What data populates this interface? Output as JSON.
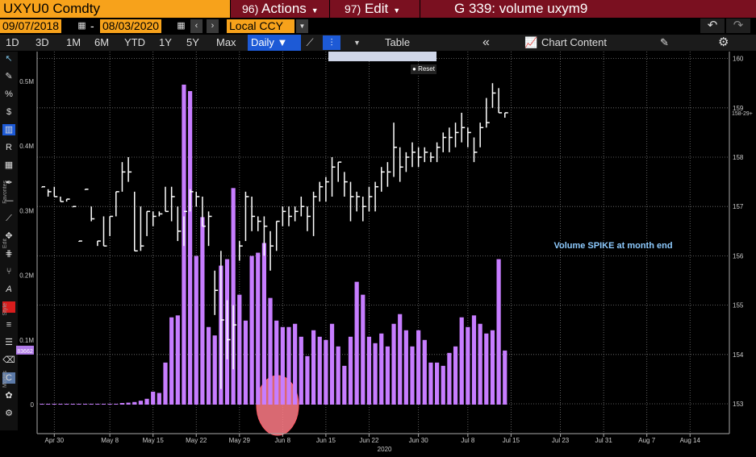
{
  "header": {
    "ticker": "UXYU0 Comdty",
    "actions_num": "96)",
    "actions_label": "Actions",
    "edit_num": "97)",
    "edit_label": "Edit",
    "title": "G 339: volume uxym9"
  },
  "toolbar": {
    "start_date": "09/07/2018",
    "dash": "-",
    "end_date": "08/03/2020",
    "currency": "Local CCY",
    "periods": [
      "1D",
      "3D",
      "1M",
      "6M",
      "YTD",
      "1Y",
      "5Y",
      "Max"
    ],
    "frequency": "Daily",
    "table_label": "Table",
    "chart_content_label": "Chart Content"
  },
  "overlay": {
    "reset_label": "Reset"
  },
  "side_labels": {
    "favorites": "Favorites",
    "edit": "Edit",
    "style": "Style",
    "modes": "Modes",
    "value_box": "83662"
  },
  "chart_data": {
    "type": "bar",
    "annotation": "Volume SPIKE at month end",
    "x_ticks": [
      "Apr 30",
      "May 8",
      "May 15",
      "May 22",
      "May 29",
      "Jun 8",
      "Jun 15",
      "Jun 22",
      "Jun 30",
      "Jul 8",
      "Jul 15",
      "Jul 23",
      "Jul 31",
      "Aug 7",
      "Aug 14"
    ],
    "year_label": "2020",
    "left_axis": {
      "ticks": [
        "0",
        "0.1M",
        "0.2M",
        "0.3M",
        "0.4M",
        "0.5M"
      ],
      "tick_values": [
        0,
        100000,
        200000,
        300000,
        400000,
        500000
      ],
      "ylim": [
        0,
        520000
      ]
    },
    "right_axis": {
      "ticks": [
        "153",
        "154",
        "155",
        "156",
        "157",
        "158",
        "159",
        "160"
      ],
      "tick_values": [
        153,
        154,
        155,
        156,
        157,
        158,
        159,
        160
      ],
      "ylim": [
        152.8,
        160.1
      ],
      "last_price_label": "158-29+"
    },
    "series": [
      {
        "kind": "volume",
        "color": "#c77dff",
        "values": [
          0,
          0,
          0,
          0,
          0,
          0,
          0,
          0,
          0,
          0,
          0,
          0,
          1000,
          2500,
          3000,
          4000,
          6000,
          9000,
          20000,
          18000,
          65000,
          135000,
          138000,
          495000,
          485000,
          230000,
          290000,
          120000,
          107000,
          215000,
          225000,
          335000,
          170000,
          130000,
          230000,
          235000,
          250000,
          165000,
          130000,
          120000,
          120000,
          125000,
          105000,
          75000,
          115000,
          105000,
          100000,
          125000,
          90000,
          60000,
          105000,
          190000,
          170000,
          105000,
          95000,
          110000,
          90000,
          125000,
          140000,
          115000,
          90000,
          115000,
          100000,
          65000,
          65000,
          60000,
          80000,
          90000,
          135000,
          120000,
          138000,
          125000,
          110000,
          115000,
          225000,
          83662
        ]
      },
      {
        "kind": "price_hlc",
        "color": "#ffffff",
        "values": [
          [
            157.4,
            157.4,
            157.4
          ],
          [
            157.35,
            157.2,
            157.3
          ],
          [
            157.4,
            157.2,
            157.2
          ],
          [
            157.2,
            157.1,
            157.1
          ],
          [
            157.15,
            157.1,
            157.15
          ],
          [
            157.0,
            157.0,
            157.0
          ],
          [
            156.3,
            156.3,
            156.3
          ],
          [
            157.35,
            157.35,
            157.35
          ],
          [
            157.0,
            156.7,
            156.75
          ],
          [
            156.3,
            156.2,
            156.3
          ],
          [
            156.8,
            156.2,
            156.2
          ],
          [
            156.8,
            156.4,
            156.8
          ],
          [
            157.3,
            156.8,
            157.3
          ],
          [
            157.9,
            157.3,
            157.7
          ],
          [
            158.0,
            157.5,
            157.7
          ],
          [
            157.3,
            156.1,
            156.1
          ],
          [
            157.0,
            156.1,
            156.2
          ],
          [
            156.9,
            156.4,
            156.9
          ],
          [
            156.9,
            156.6,
            156.8
          ],
          [
            156.9,
            156.8,
            156.85
          ],
          [
            157.4,
            156.9,
            156.9
          ],
          [
            157.4,
            156.7,
            157.2
          ],
          [
            157.0,
            156.3,
            156.5
          ],
          [
            156.8,
            156.2,
            156.9
          ],
          [
            157.35,
            156.9,
            157.3
          ],
          [
            157.3,
            157.0,
            157.2
          ],
          [
            157.2,
            156.6,
            156.6
          ],
          [
            156.9,
            156.2,
            156.8
          ],
          [
            155.7,
            154.8,
            155.3
          ],
          [
            156.1,
            153.3,
            154.7
          ],
          [
            155.1,
            153.9,
            154.3
          ],
          [
            155.0,
            153.7,
            154.6
          ],
          [
            156.3,
            155.9,
            156.2
          ],
          [
            157.3,
            156.3,
            157.2
          ],
          [
            157.2,
            156.5,
            156.8
          ],
          [
            156.8,
            156.5,
            156.7
          ],
          [
            156.8,
            156.0,
            156.6
          ],
          [
            156.5,
            155.7,
            156.2
          ],
          [
            156.7,
            156.1,
            156.7
          ],
          [
            157.0,
            156.6,
            156.9
          ],
          [
            157.0,
            156.6,
            156.8
          ],
          [
            157.0,
            156.7,
            156.9
          ],
          [
            157.2,
            156.8,
            157.0
          ],
          [
            157.0,
            156.5,
            156.8
          ],
          [
            157.3,
            156.4,
            157.2
          ],
          [
            157.5,
            157.1,
            157.4
          ],
          [
            157.6,
            157.1,
            157.5
          ],
          [
            158.0,
            157.2,
            157.8
          ],
          [
            157.9,
            157.5,
            157.9
          ],
          [
            157.7,
            157.2,
            157.5
          ],
          [
            157.5,
            156.7,
            157.2
          ],
          [
            157.3,
            156.9,
            157.2
          ],
          [
            157.2,
            156.7,
            157.0
          ],
          [
            157.4,
            156.9,
            157.2
          ],
          [
            157.5,
            156.9,
            157.4
          ],
          [
            157.8,
            157.3,
            157.7
          ],
          [
            157.9,
            157.4,
            157.7
          ],
          [
            158.7,
            157.6,
            158.2
          ],
          [
            158.2,
            157.5,
            157.8
          ],
          [
            158.1,
            157.7,
            158.0
          ],
          [
            158.3,
            157.8,
            158.1
          ],
          [
            158.2,
            157.8,
            158.0
          ],
          [
            158.2,
            157.9,
            158.1
          ],
          [
            158.1,
            157.9,
            158.0
          ],
          [
            158.3,
            157.9,
            158.2
          ],
          [
            158.5,
            158.1,
            158.4
          ],
          [
            158.6,
            158.1,
            158.4
          ],
          [
            158.7,
            158.2,
            158.5
          ],
          [
            158.9,
            158.3,
            158.6
          ],
          [
            158.6,
            158.2,
            158.5
          ],
          [
            158.4,
            157.9,
            158.1
          ],
          [
            158.7,
            158.2,
            158.6
          ],
          [
            159.2,
            158.6,
            158.7
          ],
          [
            159.5,
            159.0,
            159.3
          ],
          [
            159.4,
            158.9,
            158.9
          ],
          [
            158.9,
            158.8,
            158.9
          ]
        ]
      }
    ]
  }
}
